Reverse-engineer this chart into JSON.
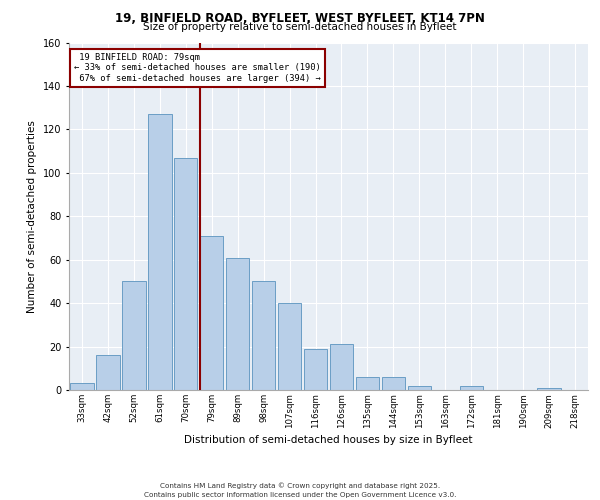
{
  "title1": "19, BINFIELD ROAD, BYFLEET, WEST BYFLEET, KT14 7PN",
  "title2": "Size of property relative to semi-detached houses in Byfleet",
  "xlabel": "Distribution of semi-detached houses by size in Byfleet",
  "ylabel": "Number of semi-detached properties",
  "categories": [
    "33sqm",
    "42sqm",
    "52sqm",
    "61sqm",
    "70sqm",
    "79sqm",
    "89sqm",
    "98sqm",
    "107sqm",
    "116sqm",
    "126sqm",
    "135sqm",
    "144sqm",
    "153sqm",
    "163sqm",
    "172sqm",
    "181sqm",
    "190sqm",
    "209sqm",
    "218sqm"
  ],
  "values": [
    3,
    16,
    50,
    127,
    107,
    71,
    61,
    50,
    40,
    19,
    21,
    6,
    6,
    2,
    0,
    2,
    0,
    0,
    1,
    0
  ],
  "bar_color": "#b8cfe8",
  "bar_edge_color": "#6a9ec5",
  "property_bar_index": 5,
  "property_name": "19 BINFIELD ROAD: 79sqm",
  "smaller_pct": "33%",
  "smaller_n": 190,
  "larger_pct": "67%",
  "larger_n": 394,
  "annotation_line_color": "#8b0000",
  "ylim": [
    0,
    160
  ],
  "yticks": [
    0,
    20,
    40,
    60,
    80,
    100,
    120,
    140,
    160
  ],
  "background_color": "#e8eef5",
  "footer1": "Contains HM Land Registry data © Crown copyright and database right 2025.",
  "footer2": "Contains public sector information licensed under the Open Government Licence v3.0."
}
